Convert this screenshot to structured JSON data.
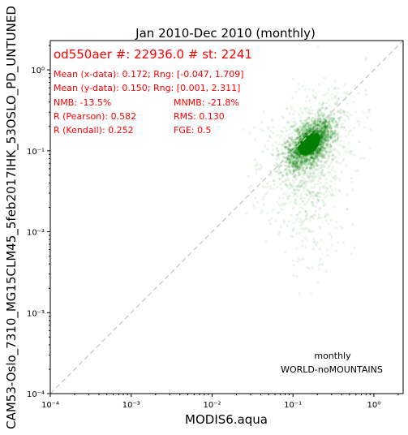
{
  "chart_data": {
    "type": "scatter",
    "title": "Jan 2010-Dec 2010 (monthly)",
    "xlabel": "MODIS6.aqua",
    "ylabel": "CAM53-Oslo_7310_MG15CLM45_5feb2017IHK_53OSLO_PD_UNTUNED",
    "xscale": "log",
    "yscale": "log",
    "xlim": [
      0.0001,
      2.3
    ],
    "ylim": [
      0.0001,
      2.3
    ],
    "x_ticks": [
      {
        "value": 0.0001,
        "label": "10⁻⁴"
      },
      {
        "value": 0.001,
        "label": "10⁻³"
      },
      {
        "value": 0.01,
        "label": "10⁻²"
      },
      {
        "value": 0.1,
        "label": "10⁻¹"
      },
      {
        "value": 1,
        "label": "10⁰"
      }
    ],
    "y_ticks": [
      {
        "value": 0.0001,
        "label": "10⁻⁴"
      },
      {
        "value": 0.001,
        "label": "10⁻³"
      },
      {
        "value": 0.01,
        "label": "10⁻²"
      },
      {
        "value": 0.1,
        "label": "10⁻¹"
      },
      {
        "value": 1,
        "label": "10⁰"
      }
    ],
    "reference_line": {
      "style": "dashed",
      "color": "#c8c8c8",
      "relation": "1:1"
    },
    "point_color": "#008000",
    "point_count": 22936,
    "grid": false,
    "series": [
      {
        "cluster_center_x": 0.16,
        "cluster_center_y": 0.12,
        "x_range": [
          -0.047,
          1.709
        ],
        "y_range": [
          0.001,
          2.311
        ]
      }
    ],
    "stats": {
      "header": "od550aer #: 22936.0 # st: 2241",
      "mean_x": "Mean (x-data): 0.172; Rng: [-0.047, 1.709]",
      "mean_y": "Mean (y-data): 0.150; Rng: [0.001, 2.311]",
      "nmb": "NMB: -13.5%",
      "mnmb": "MNMB: -21.8%",
      "r_pearson": "R (Pearson): 0.582",
      "rms": "RMS: 0.130",
      "r_kendall": "R (Kendall): 0.252",
      "fge": "FGE: 0.5"
    },
    "annotations": {
      "frequency": "monthly",
      "region": "WORLD-noMOUNTAINS"
    },
    "stats_color": "#ff0000"
  }
}
